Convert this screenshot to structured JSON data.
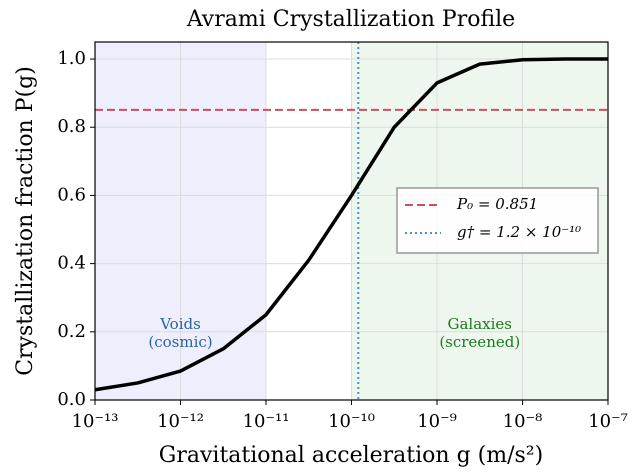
{
  "chart_data": {
    "type": "line",
    "title": "Avrami Crystallization Profile",
    "xlabel": "Gravitational acceleration g (m/s²)",
    "ylabel": "Crystallization fraction P(g)",
    "x": [
      1e-13,
      3.16e-13,
      1e-12,
      3.16e-12,
      1e-11,
      3.16e-11,
      1e-10,
      3.16e-10,
      1e-09,
      3.16e-09,
      1e-08,
      3.16e-08,
      1e-07
    ],
    "series": [
      {
        "color": "#000000",
        "values": [
          0.03,
          0.05,
          0.085,
          0.15,
          0.25,
          0.41,
          0.6,
          0.8,
          0.93,
          0.985,
          0.998,
          1.0,
          1.0
        ]
      }
    ],
    "xscale": "log",
    "xlim": [
      1e-13,
      1e-07
    ],
    "xticks": [
      {
        "value": 1e-13,
        "label": "10⁻¹³"
      },
      {
        "value": 1e-12,
        "label": "10⁻¹²"
      },
      {
        "value": 1e-11,
        "label": "10⁻¹¹"
      },
      {
        "value": 1e-10,
        "label": "10⁻¹⁰"
      },
      {
        "value": 1e-09,
        "label": "10⁻⁹"
      },
      {
        "value": 1e-08,
        "label": "10⁻⁸"
      },
      {
        "value": 1e-07,
        "label": "10⁻⁷"
      }
    ],
    "ylim": [
      0,
      1.05
    ],
    "yticks": [
      {
        "value": 0,
        "label": "0.0"
      },
      0.2,
      0.4,
      0.6,
      0.8,
      {
        "value": 1,
        "label": "1.0"
      }
    ],
    "grid": true,
    "regions": [
      {
        "xlim": [
          1e-13,
          1e-11
        ],
        "color": "#eeeefc",
        "text": [
          "Voids",
          "(cosmic)"
        ],
        "text_color": "#2a64a8"
      },
      {
        "xlim": [
          1e-10,
          1e-07
        ],
        "color": "#eef7ee",
        "text": [
          "Galaxies",
          "(screened)"
        ],
        "text_color": "#1c7a1c"
      }
    ],
    "hline": {
      "y": 0.851,
      "color": "#cc4f5e",
      "name": "P₀ = 0.851"
    },
    "vline": {
      "x": 1.2e-10,
      "color": "#4a8fd0",
      "name": "g† = 1.2 × 10⁻¹⁰"
    },
    "legend": "center right"
  }
}
